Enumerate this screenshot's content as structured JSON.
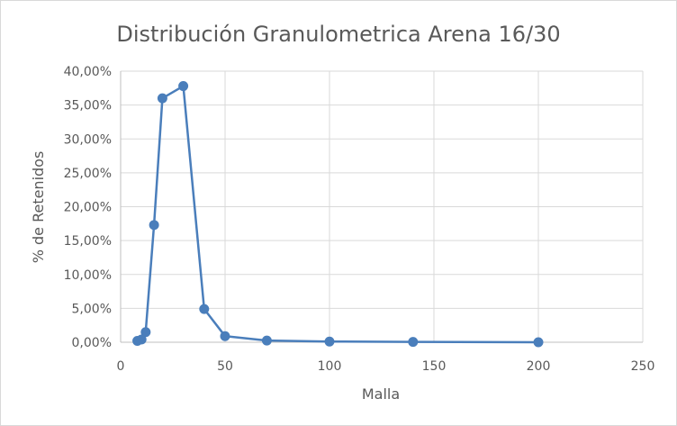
{
  "chart_data": {
    "type": "scatter",
    "title": "Distribución Granulometrica Arena 16/30",
    "xlabel": "Malla",
    "ylabel": "% de Retenidos",
    "xlim": [
      0,
      250
    ],
    "ylim": [
      0,
      40
    ],
    "x_ticks": [
      0,
      50,
      100,
      150,
      200,
      250
    ],
    "y_ticks": [
      0,
      5,
      10,
      15,
      20,
      25,
      30,
      35,
      40
    ],
    "x_tick_labels": [
      "0",
      "50",
      "100",
      "150",
      "200",
      "250"
    ],
    "y_tick_labels": [
      "0,00%",
      "5,00%",
      "10,00%",
      "15,00%",
      "20,00%",
      "25,00%",
      "30,00%",
      "35,00%",
      "40,00%"
    ],
    "grid": true,
    "legend": "none",
    "series_color": "#4a7ebb",
    "series": [
      {
        "x": [
          8,
          10,
          12,
          16,
          20,
          30,
          40,
          50,
          70,
          100,
          140,
          200
        ],
        "y": [
          0.2,
          0.4,
          1.5,
          17.3,
          36.0,
          37.8,
          4.9,
          0.9,
          0.25,
          0.1,
          0.05,
          0.0
        ]
      }
    ]
  }
}
